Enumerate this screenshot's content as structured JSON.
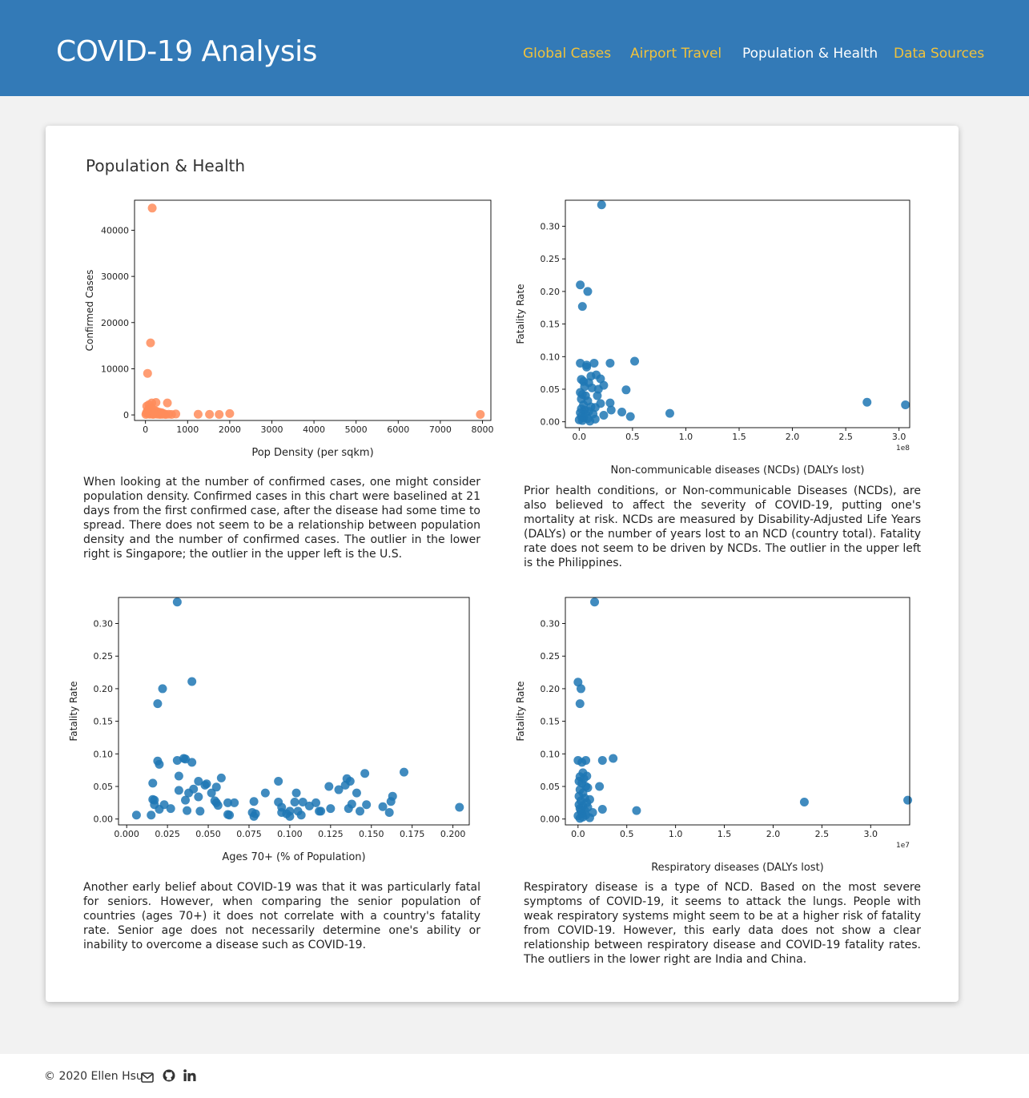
{
  "header": {
    "brand": "COVID-19 Analysis",
    "nav": [
      {
        "label": "Global Cases",
        "active": false
      },
      {
        "label": "Airport Travel",
        "active": false
      },
      {
        "label": "Population & Health",
        "active": true
      },
      {
        "label": "Data Sources",
        "active": false
      }
    ],
    "background_color": "#337ab7",
    "link_color": "#f0c23c"
  },
  "main": {
    "title": "Population & Health",
    "descriptions": [
      "When looking at the number of confirmed cases, one might consider population density. Confirmed cases in this chart were baselined at 21 days from the first confirmed case, after the disease had some time to spread. There does not seem to be a relationship between population density and the number of confirmed cases. The outlier in the lower right is Singapore; the outlier in the upper left is the U.S.",
      "Prior health conditions, or Non-communicable Diseases (NCDs), are also believed to affect the severity of COVID-19, putting one's mortality at risk. NCDs are measured by Disability-Adjusted Life Years (DALYs) or the number of years lost to an NCD (country total). Fatality rate does not seem to be driven by NCDs. The outlier in the upper left is the Philippines.",
      "Another early belief about COVID-19 was that it was particularly fatal for seniors. However, when comparing the senior population of countries (ages 70+) it does not correlate with a country's fatality rate. Senior age does not necessarily determine one's ability or inability to overcome a disease such as COVID-19.",
      "Respiratory disease is a type of NCD. Based on the most severe symptoms of COVID-19, it seems to attack the lungs. People with weak respiratory systems might seem to be at a higher risk of fatality from COVID-19. However, this early data does not show a clear relationship between respiratory disease and COVID-19 fatality rates. The outliers in the lower right are India and China."
    ]
  },
  "chart_data": [
    {
      "type": "scatter",
      "xlabel": "Pop Density (per sqkm)",
      "ylabel": "Confirmed Cases",
      "xlim": [
        -260,
        8200
      ],
      "ylim": [
        -1200,
        46500
      ],
      "xticks": [
        0,
        1000,
        2000,
        3000,
        4000,
        5000,
        6000,
        7000,
        8000
      ],
      "yticks": [
        0,
        10000,
        20000,
        30000,
        40000
      ],
      "grid": false,
      "color": "#ff8c5a",
      "points": [
        [
          160,
          44800
        ],
        [
          120,
          15600
        ],
        [
          50,
          9000
        ],
        [
          30,
          1900
        ],
        [
          80,
          2200
        ],
        [
          150,
          2600
        ],
        [
          250,
          2700
        ],
        [
          520,
          2600
        ],
        [
          10,
          100
        ],
        [
          20,
          400
        ],
        [
          40,
          800
        ],
        [
          60,
          300
        ],
        [
          70,
          1200
        ],
        [
          90,
          600
        ],
        [
          100,
          150
        ],
        [
          110,
          900
        ],
        [
          130,
          200
        ],
        [
          140,
          1500
        ],
        [
          170,
          700
        ],
        [
          180,
          100
        ],
        [
          190,
          300
        ],
        [
          200,
          500
        ],
        [
          210,
          1000
        ],
        [
          220,
          200
        ],
        [
          240,
          400
        ],
        [
          260,
          800
        ],
        [
          280,
          150
        ],
        [
          300,
          300
        ],
        [
          320,
          600
        ],
        [
          340,
          100
        ],
        [
          360,
          250
        ],
        [
          380,
          500
        ],
        [
          400,
          120
        ],
        [
          420,
          300
        ],
        [
          450,
          200
        ],
        [
          480,
          80
        ],
        [
          550,
          150
        ],
        [
          620,
          100
        ],
        [
          720,
          200
        ],
        [
          1250,
          150
        ],
        [
          1520,
          120
        ],
        [
          1750,
          100
        ],
        [
          2000,
          300
        ],
        [
          7950,
          100
        ]
      ]
    },
    {
      "type": "scatter",
      "xlabel": "Non-communicable diseases (NCDs) (DALYs lost)",
      "ylabel": "Fatality Rate",
      "offset_label": "1e8",
      "xlim": [
        -0.13,
        3.1
      ],
      "ylim": [
        -0.009,
        0.34
      ],
      "xticks": [
        0.0,
        0.5,
        1.0,
        1.5,
        2.0,
        2.5,
        3.0
      ],
      "yticks": [
        0.0,
        0.05,
        0.1,
        0.15,
        0.2,
        0.25,
        0.3
      ],
      "grid": false,
      "color": "#1f77b4",
      "points": [
        [
          0.21,
          0.333
        ],
        [
          0.01,
          0.21
        ],
        [
          0.08,
          0.2
        ],
        [
          0.03,
          0.177
        ],
        [
          0.01,
          0.09
        ],
        [
          0.07,
          0.087
        ],
        [
          0.07,
          0.084
        ],
        [
          0.14,
          0.09
        ],
        [
          0.29,
          0.09
        ],
        [
          0.52,
          0.093
        ],
        [
          0.11,
          0.07
        ],
        [
          0.16,
          0.072
        ],
        [
          0.2,
          0.066
        ],
        [
          0.02,
          0.065
        ],
        [
          0.04,
          0.062
        ],
        [
          0.09,
          0.06
        ],
        [
          0.23,
          0.056
        ],
        [
          0.05,
          0.054
        ],
        [
          0.12,
          0.052
        ],
        [
          0.18,
          0.05
        ],
        [
          0.44,
          0.049
        ],
        [
          0.01,
          0.045
        ],
        [
          0.03,
          0.042
        ],
        [
          0.06,
          0.04
        ],
        [
          0.17,
          0.04
        ],
        [
          0.02,
          0.035
        ],
        [
          0.08,
          0.032
        ],
        [
          0.29,
          0.029
        ],
        [
          0.2,
          0.028
        ],
        [
          0.04,
          0.026
        ],
        [
          0.11,
          0.023
        ],
        [
          0.15,
          0.022
        ],
        [
          0.02,
          0.02
        ],
        [
          0.05,
          0.018
        ],
        [
          0.3,
          0.018
        ],
        [
          0.09,
          0.016
        ],
        [
          0.4,
          0.015
        ],
        [
          0.01,
          0.014
        ],
        [
          0.06,
          0.012
        ],
        [
          0.13,
          0.012
        ],
        [
          0.23,
          0.01
        ],
        [
          0.02,
          0.008
        ],
        [
          0.48,
          0.008
        ],
        [
          0.85,
          0.013
        ],
        [
          0.04,
          0.006
        ],
        [
          0.08,
          0.005
        ],
        [
          0.15,
          0.004
        ],
        [
          0.0,
          0.003
        ],
        [
          0.03,
          0.002
        ],
        [
          0.1,
          0.001
        ],
        [
          2.7,
          0.03
        ],
        [
          3.06,
          0.026
        ]
      ]
    },
    {
      "type": "scatter",
      "xlabel": "Ages 70+ (% of Population)",
      "ylabel": "Fatality Rate",
      "xlim": [
        -0.005,
        0.21
      ],
      "ylim": [
        -0.009,
        0.34
      ],
      "xticks": [
        0.0,
        0.025,
        0.05,
        0.075,
        0.1,
        0.125,
        0.15,
        0.175,
        0.2
      ],
      "yticks": [
        0.0,
        0.05,
        0.1,
        0.15,
        0.2,
        0.25,
        0.3
      ],
      "grid": false,
      "color": "#1f77b4",
      "points": [
        [
          0.031,
          0.333
        ],
        [
          0.04,
          0.211
        ],
        [
          0.022,
          0.2
        ],
        [
          0.019,
          0.177
        ],
        [
          0.019,
          0.089
        ],
        [
          0.02,
          0.084
        ],
        [
          0.031,
          0.09
        ],
        [
          0.035,
          0.093
        ],
        [
          0.036,
          0.092
        ],
        [
          0.04,
          0.087
        ],
        [
          0.032,
          0.066
        ],
        [
          0.016,
          0.055
        ],
        [
          0.044,
          0.058
        ],
        [
          0.049,
          0.054
        ],
        [
          0.048,
          0.052
        ],
        [
          0.058,
          0.063
        ],
        [
          0.041,
          0.046
        ],
        [
          0.038,
          0.04
        ],
        [
          0.032,
          0.044
        ],
        [
          0.055,
          0.049
        ],
        [
          0.052,
          0.04
        ],
        [
          0.016,
          0.03
        ],
        [
          0.017,
          0.029
        ],
        [
          0.036,
          0.029
        ],
        [
          0.054,
          0.028
        ],
        [
          0.023,
          0.022
        ],
        [
          0.044,
          0.034
        ],
        [
          0.017,
          0.022
        ],
        [
          0.02,
          0.015
        ],
        [
          0.027,
          0.016
        ],
        [
          0.037,
          0.013
        ],
        [
          0.045,
          0.012
        ],
        [
          0.055,
          0.025
        ],
        [
          0.056,
          0.021
        ],
        [
          0.062,
          0.025
        ],
        [
          0.066,
          0.025
        ],
        [
          0.078,
          0.027
        ],
        [
          0.085,
          0.04
        ],
        [
          0.093,
          0.058
        ],
        [
          0.093,
          0.026
        ],
        [
          0.095,
          0.018
        ],
        [
          0.1,
          0.012
        ],
        [
          0.104,
          0.04
        ],
        [
          0.103,
          0.026
        ],
        [
          0.108,
          0.026
        ],
        [
          0.112,
          0.02
        ],
        [
          0.116,
          0.025
        ],
        [
          0.119,
          0.012
        ],
        [
          0.124,
          0.05
        ],
        [
          0.13,
          0.045
        ],
        [
          0.134,
          0.052
        ],
        [
          0.135,
          0.062
        ],
        [
          0.137,
          0.058
        ],
        [
          0.141,
          0.04
        ],
        [
          0.146,
          0.07
        ],
        [
          0.138,
          0.023
        ],
        [
          0.147,
          0.022
        ],
        [
          0.157,
          0.019
        ],
        [
          0.162,
          0.027
        ],
        [
          0.163,
          0.035
        ],
        [
          0.17,
          0.072
        ],
        [
          0.204,
          0.018
        ],
        [
          0.006,
          0.006
        ],
        [
          0.015,
          0.006
        ],
        [
          0.062,
          0.007
        ],
        [
          0.063,
          0.006
        ],
        [
          0.077,
          0.01
        ],
        [
          0.078,
          0.004
        ],
        [
          0.079,
          0.008
        ],
        [
          0.095,
          0.01
        ],
        [
          0.098,
          0.008
        ],
        [
          0.1,
          0.004
        ],
        [
          0.105,
          0.012
        ],
        [
          0.107,
          0.006
        ],
        [
          0.118,
          0.012
        ],
        [
          0.125,
          0.016
        ],
        [
          0.136,
          0.016
        ],
        [
          0.143,
          0.012
        ],
        [
          0.161,
          0.01
        ]
      ]
    },
    {
      "type": "scatter",
      "xlabel": "Respiratory diseases (DALYs lost)",
      "ylabel": "Fatality Rate",
      "offset_label": "1e7",
      "xlim": [
        -0.13,
        3.4
      ],
      "ylim": [
        -0.009,
        0.34
      ],
      "xticks": [
        0.0,
        0.5,
        1.0,
        1.5,
        2.0,
        2.5,
        3.0
      ],
      "yticks": [
        0.0,
        0.05,
        0.1,
        0.15,
        0.2,
        0.25,
        0.3
      ],
      "grid": false,
      "color": "#1f77b4",
      "points": [
        [
          0.17,
          0.333
        ],
        [
          0.0,
          0.21
        ],
        [
          0.03,
          0.2
        ],
        [
          0.02,
          0.177
        ],
        [
          0.0,
          0.09
        ],
        [
          0.04,
          0.087
        ],
        [
          0.08,
          0.09
        ],
        [
          0.25,
          0.09
        ],
        [
          0.36,
          0.093
        ],
        [
          0.05,
          0.071
        ],
        [
          0.02,
          0.065
        ],
        [
          0.06,
          0.062
        ],
        [
          0.09,
          0.066
        ],
        [
          0.01,
          0.058
        ],
        [
          0.04,
          0.055
        ],
        [
          0.08,
          0.05
        ],
        [
          0.22,
          0.05
        ],
        [
          0.1,
          0.048
        ],
        [
          0.02,
          0.045
        ],
        [
          0.05,
          0.04
        ],
        [
          0.01,
          0.035
        ],
        [
          0.07,
          0.032
        ],
        [
          0.12,
          0.03
        ],
        [
          0.03,
          0.028
        ],
        [
          0.09,
          0.025
        ],
        [
          0.01,
          0.022
        ],
        [
          0.05,
          0.02
        ],
        [
          0.1,
          0.018
        ],
        [
          0.02,
          0.016
        ],
        [
          0.25,
          0.015
        ],
        [
          0.07,
          0.013
        ],
        [
          0.03,
          0.012
        ],
        [
          0.15,
          0.01
        ],
        [
          0.04,
          0.008
        ],
        [
          0.08,
          0.006
        ],
        [
          0.0,
          0.005
        ],
        [
          0.05,
          0.003
        ],
        [
          0.12,
          0.002
        ],
        [
          0.02,
          0.001
        ],
        [
          0.6,
          0.013
        ],
        [
          2.32,
          0.026
        ],
        [
          3.38,
          0.029
        ]
      ]
    }
  ],
  "footer": {
    "copyright": "© 2020 Ellen Hsu",
    "icons": [
      "envelope-icon",
      "github-icon",
      "linkedin-icon"
    ]
  }
}
